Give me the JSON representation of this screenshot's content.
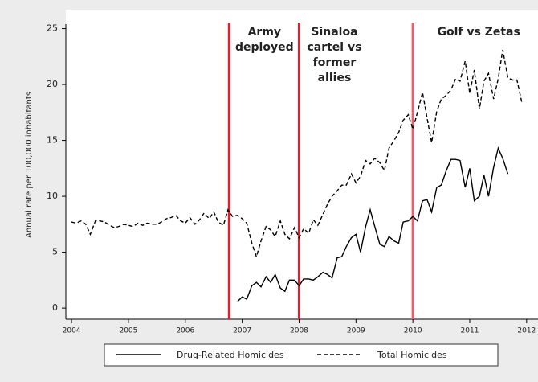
{
  "chart_data": {
    "type": "line",
    "y_label": "Annual rate per 100,000 inhabitants",
    "xlim": [
      2003.9,
      2012.2
    ],
    "ylim": [
      -1,
      25.4
    ],
    "xticks": [
      2004,
      2005,
      2006,
      2007,
      2008,
      2009,
      2010,
      2011,
      2012
    ],
    "yticks": [
      0,
      5,
      10,
      15,
      20,
      25
    ],
    "legend": "bottom",
    "annotations": [
      {
        "x": 2006.77,
        "lines": [
          "Army",
          "deployed"
        ],
        "color": "#e0202a"
      },
      {
        "x": 2008.0,
        "lines": [
          "Sinaloa",
          "cartel vs",
          "former",
          "allies"
        ],
        "color": "#e0202a"
      },
      {
        "x": 2010.0,
        "lines": [
          "Golf vs Zetas"
        ],
        "color": "#f05a6a"
      }
    ],
    "series": [
      {
        "name": "Drug-Related Homicides",
        "color": "#000000",
        "line_style": "solid",
        "x": [
          2006.92,
          2007.0,
          2007.08,
          2007.17,
          2007.25,
          2007.33,
          2007.42,
          2007.5,
          2007.58,
          2007.67,
          2007.75,
          2007.83,
          2007.92,
          2008.0,
          2008.08,
          2008.17,
          2008.25,
          2008.33,
          2008.42,
          2008.5,
          2008.58,
          2008.67,
          2008.75,
          2008.83,
          2008.92,
          2009.0,
          2009.08,
          2009.17,
          2009.25,
          2009.33,
          2009.42,
          2009.5,
          2009.58,
          2009.67,
          2009.75,
          2009.83,
          2009.92,
          2010.0,
          2010.08,
          2010.17,
          2010.25,
          2010.33,
          2010.42,
          2010.5,
          2010.58,
          2010.67,
          2010.75,
          2010.83,
          2010.92,
          2011.0,
          2011.08,
          2011.17,
          2011.25,
          2011.33,
          2011.42,
          2011.5,
          2011.58,
          2011.67
        ],
        "values": [
          0.6,
          1.0,
          0.8,
          2.0,
          2.3,
          1.9,
          2.8,
          2.3,
          3.0,
          1.8,
          1.5,
          2.5,
          2.5,
          2.0,
          2.6,
          2.6,
          2.5,
          2.8,
          3.2,
          3.0,
          2.7,
          4.5,
          4.6,
          5.5,
          6.3,
          6.6,
          5.0,
          7.3,
          8.8,
          7.3,
          5.7,
          5.5,
          6.4,
          6.0,
          5.8,
          7.7,
          7.8,
          8.2,
          7.8,
          9.6,
          9.7,
          8.6,
          10.8,
          11.0,
          12.2,
          13.3,
          13.3,
          13.2,
          10.8,
          12.5,
          9.6,
          10.0,
          11.9,
          10.0,
          12.6,
          14.3,
          13.4,
          12.0
        ]
      },
      {
        "name": "Total Homicides",
        "color": "#000000",
        "line_style": "dashed",
        "x": [
          2004.0,
          2004.08,
          2004.17,
          2004.25,
          2004.33,
          2004.42,
          2004.5,
          2004.58,
          2004.67,
          2004.75,
          2004.83,
          2004.92,
          2005.0,
          2005.08,
          2005.17,
          2005.25,
          2005.33,
          2005.42,
          2005.5,
          2005.58,
          2005.67,
          2005.75,
          2005.83,
          2005.92,
          2006.0,
          2006.08,
          2006.17,
          2006.25,
          2006.33,
          2006.42,
          2006.5,
          2006.58,
          2006.67,
          2006.75,
          2006.83,
          2006.92,
          2007.0,
          2007.08,
          2007.17,
          2007.25,
          2007.33,
          2007.42,
          2007.5,
          2007.58,
          2007.67,
          2007.75,
          2007.83,
          2007.92,
          2008.0,
          2008.08,
          2008.17,
          2008.25,
          2008.33,
          2008.42,
          2008.5,
          2008.58,
          2008.67,
          2008.75,
          2008.83,
          2008.92,
          2009.0,
          2009.08,
          2009.17,
          2009.25,
          2009.33,
          2009.42,
          2009.5,
          2009.58,
          2009.67,
          2009.75,
          2009.83,
          2009.92,
          2010.0,
          2010.08,
          2010.17,
          2010.25,
          2010.33,
          2010.42,
          2010.5,
          2010.58,
          2010.67,
          2010.75,
          2010.83,
          2010.92,
          2011.0,
          2011.08,
          2011.17,
          2011.25,
          2011.33,
          2011.42,
          2011.5,
          2011.58,
          2011.67,
          2011.75,
          2011.83,
          2011.92
        ],
        "values": [
          7.7,
          7.6,
          7.8,
          7.5,
          6.6,
          7.8,
          7.8,
          7.7,
          7.4,
          7.2,
          7.3,
          7.5,
          7.4,
          7.3,
          7.6,
          7.4,
          7.6,
          7.5,
          7.5,
          7.7,
          8.0,
          8.1,
          8.3,
          7.8,
          7.6,
          8.1,
          7.5,
          7.9,
          8.5,
          8.0,
          8.6,
          7.7,
          7.4,
          8.8,
          8.2,
          8.3,
          8.0,
          7.6,
          5.8,
          4.6,
          6.0,
          7.3,
          7.0,
          6.4,
          7.8,
          6.6,
          6.2,
          7.2,
          6.3,
          7.1,
          6.7,
          7.9,
          7.4,
          8.4,
          9.3,
          10.0,
          10.5,
          11.0,
          11.0,
          12.0,
          11.2,
          11.8,
          13.2,
          12.9,
          13.4,
          13.0,
          12.3,
          14.3,
          15.0,
          15.7,
          16.8,
          17.3,
          16.0,
          17.5,
          19.3,
          17.0,
          14.8,
          17.6,
          18.7,
          19.0,
          19.5,
          20.5,
          20.3,
          22.1,
          19.2,
          21.3,
          17.8,
          20.3,
          21.0,
          18.7,
          20.5,
          23.1,
          20.6,
          20.4,
          20.4,
          18.3
        ]
      }
    ]
  }
}
